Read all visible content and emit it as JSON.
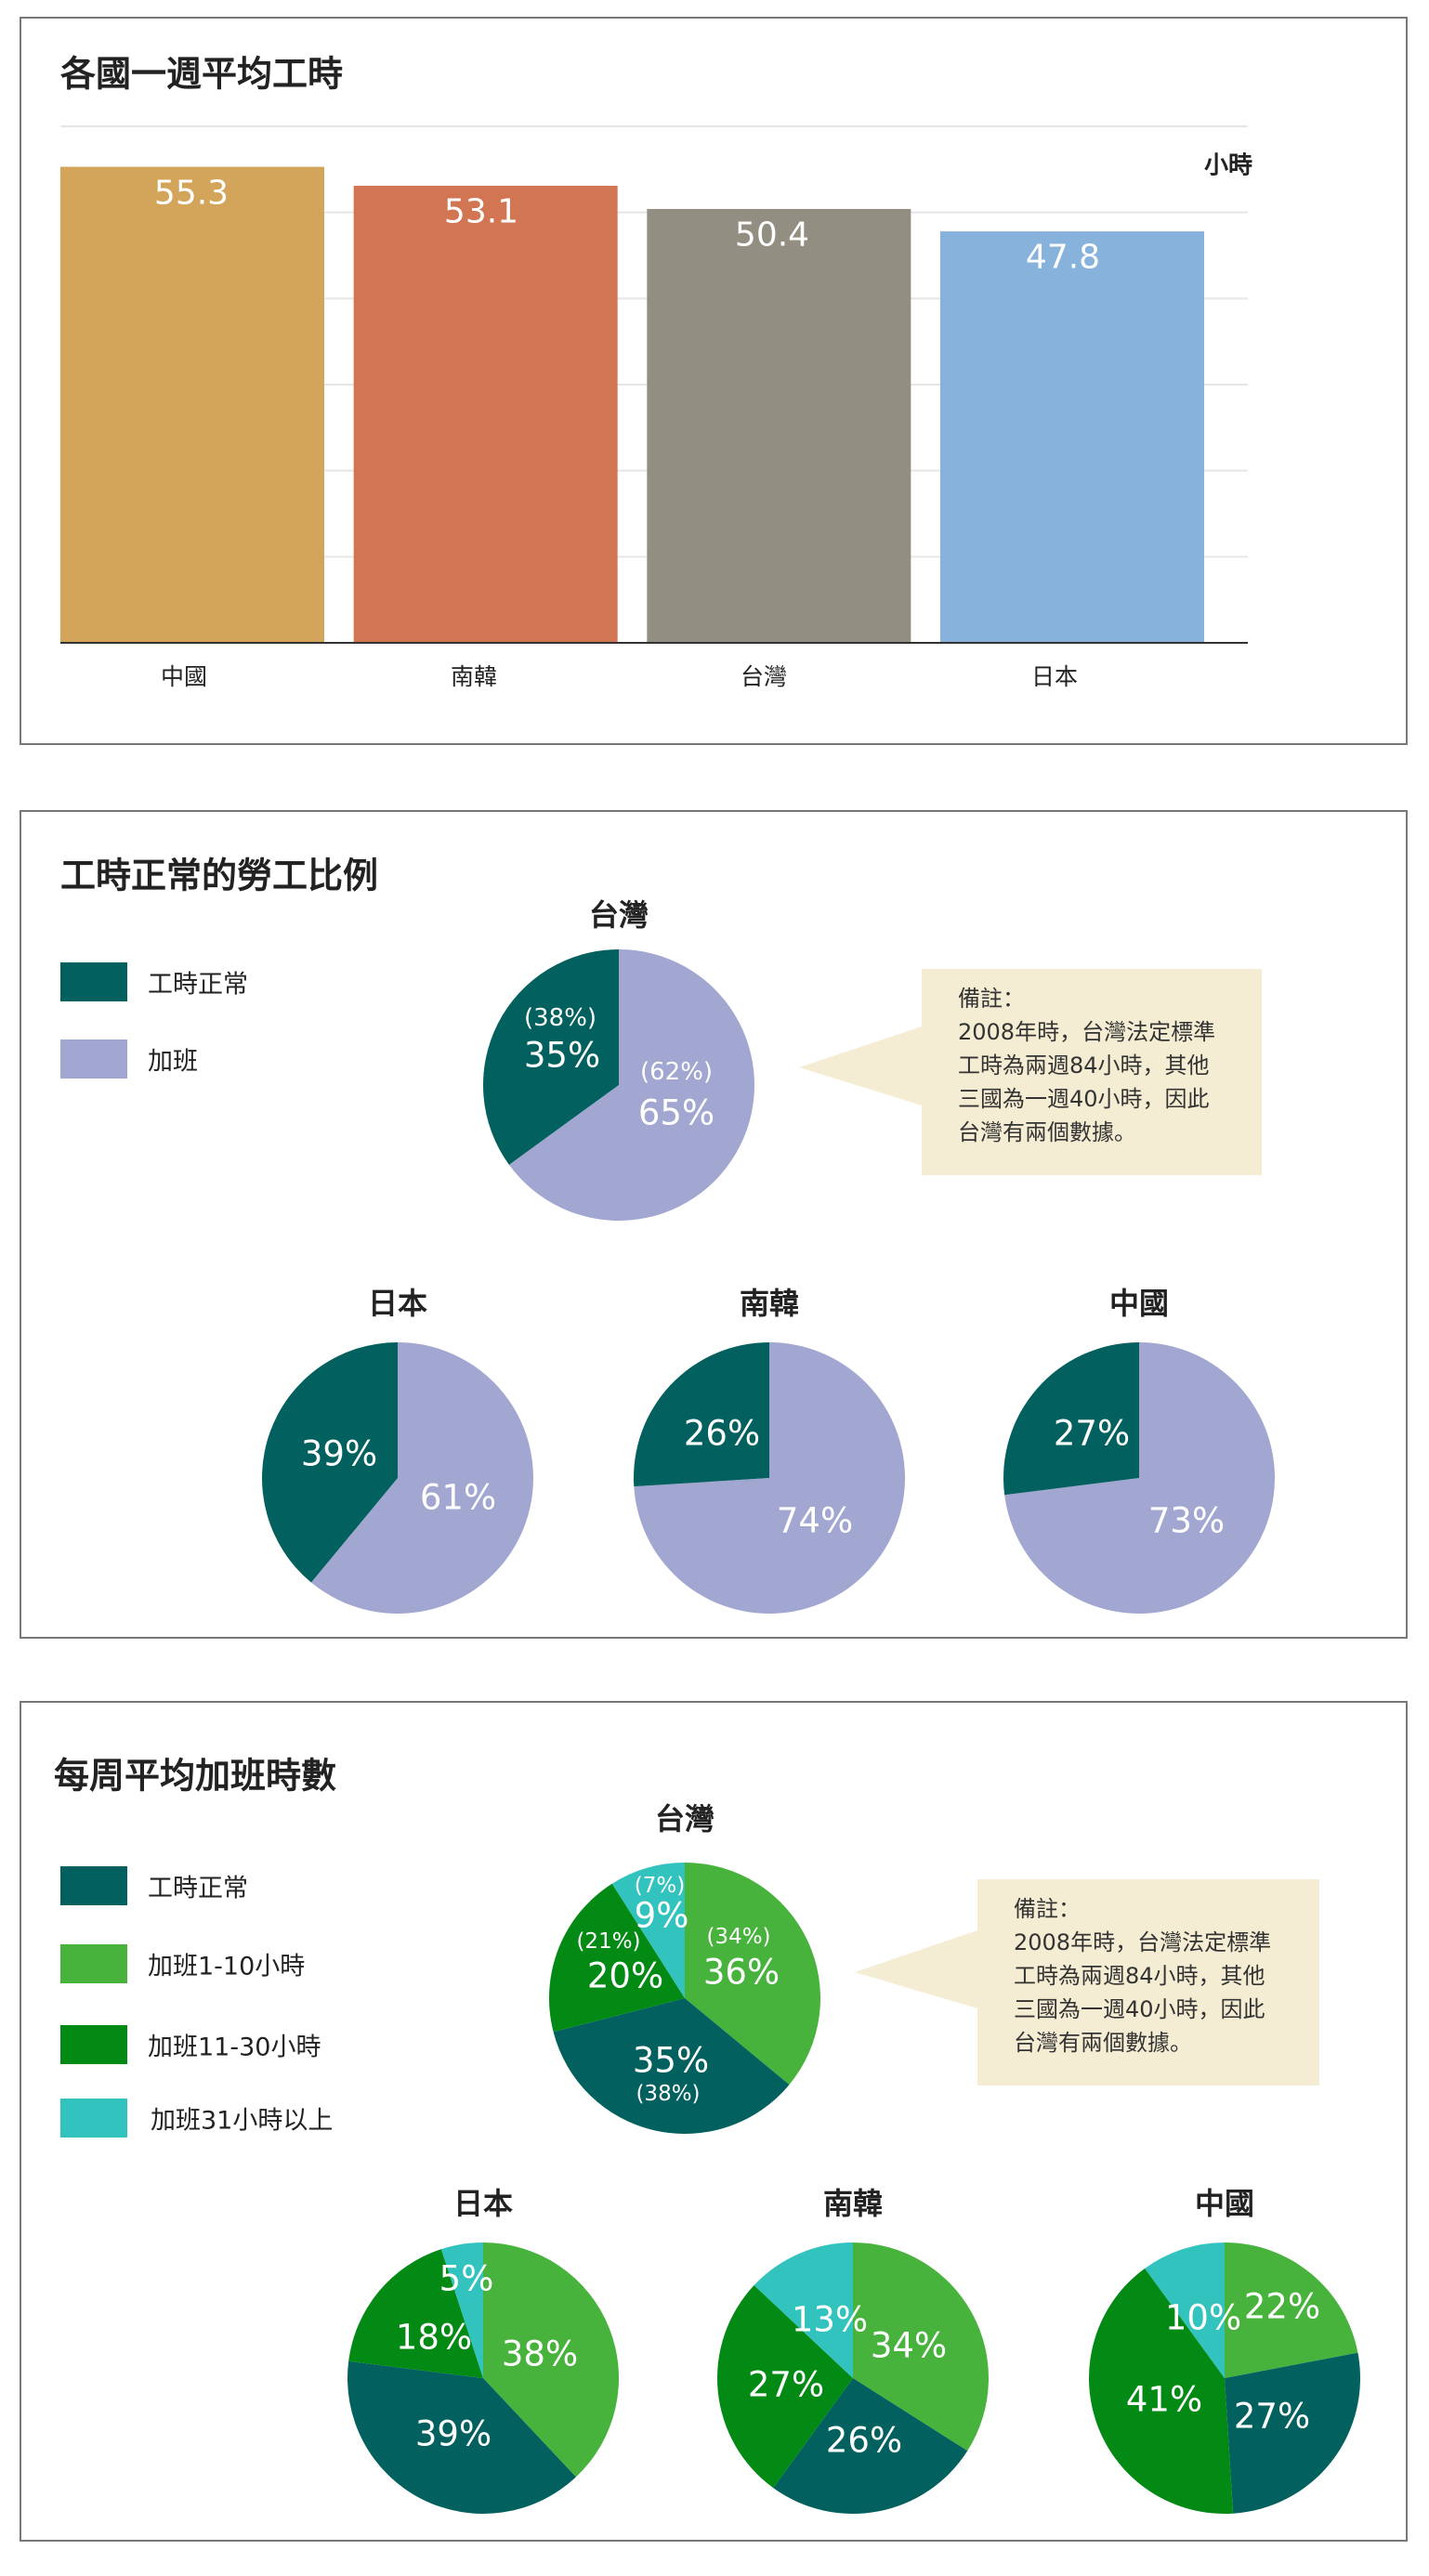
{
  "colors": {
    "bar_china": "#D3A55A",
    "bar_korea": "#D27552",
    "bar_taiwan": "#938E82",
    "bar_japan": "#86B2DC",
    "normal_hours": "#02605F",
    "overtime": "#A2A7D1",
    "overtime_1_10": "#48B33C",
    "overtime_11_30": "#028A14",
    "overtime_31_plus": "#32C3BE",
    "note_bg": "#F5EDD3"
  },
  "chart_data": [
    {
      "type": "bar",
      "title": "各國一週平均工時",
      "ylabel": "小時",
      "categories": [
        "中國",
        "南韓",
        "台灣",
        "日本"
      ],
      "values": [
        55.3,
        53.1,
        50.4,
        47.8
      ],
      "value_labels": [
        "55.3",
        "53.1",
        "50.4",
        "47.8"
      ],
      "ylim": [
        0,
        60
      ],
      "grid": true,
      "y_tick_labels_shown": false
    },
    {
      "type": "pie",
      "title": "工時正常的勞工比例",
      "legend": [
        "工時正常",
        "加班"
      ],
      "legend_placement": "left",
      "note": {
        "heading": "備註：",
        "lines": [
          "2008年時，台灣法定標準",
          "工時為兩週84小時，其他",
          "三國為一週40小時，因此",
          "台灣有兩個數據。"
        ]
      },
      "pies": [
        {
          "name": "台灣",
          "values": [
            35,
            65
          ],
          "value_labels": [
            "35%",
            "65%"
          ],
          "alt_values": [
            38,
            62
          ],
          "alt_labels": [
            "(38%)",
            "(62%)"
          ]
        },
        {
          "name": "日本",
          "values": [
            39,
            61
          ],
          "value_labels": [
            "39%",
            "61%"
          ]
        },
        {
          "name": "南韓",
          "values": [
            26,
            74
          ],
          "value_labels": [
            "26%",
            "74%"
          ]
        },
        {
          "name": "中國",
          "values": [
            27,
            73
          ],
          "value_labels": [
            "27%",
            "73%"
          ]
        }
      ]
    },
    {
      "type": "pie",
      "title": "每周平均加班時數",
      "legend": [
        "工時正常",
        "加班1-10小時",
        "加班11-30小時",
        "加班31小時以上"
      ],
      "legend_placement": "left",
      "note": {
        "heading": "備註：",
        "lines": [
          "2008年時，台灣法定標準",
          "工時為兩週84小時，其他",
          "三國為一週40小時，因此",
          "台灣有兩個數據。"
        ]
      },
      "pies": [
        {
          "name": "台灣",
          "values": [
            35,
            36,
            20,
            9
          ],
          "value_labels": [
            "35%",
            "36%",
            "20%",
            "9%"
          ],
          "alt_values": [
            38,
            34,
            21,
            7
          ],
          "alt_labels": [
            "(38%)",
            "(34%)",
            "(21%)",
            "(7%)"
          ]
        },
        {
          "name": "日本",
          "values": [
            39,
            38,
            18,
            5
          ],
          "value_labels": [
            "39%",
            "38%",
            "18%",
            "5%"
          ]
        },
        {
          "name": "南韓",
          "values": [
            26,
            34,
            27,
            13
          ],
          "value_labels": [
            "26%",
            "34%",
            "27%",
            "13%"
          ]
        },
        {
          "name": "中國",
          "values": [
            27,
            22,
            41,
            10
          ],
          "value_labels": [
            "27%",
            "22%",
            "41%",
            "10%"
          ]
        }
      ]
    }
  ]
}
